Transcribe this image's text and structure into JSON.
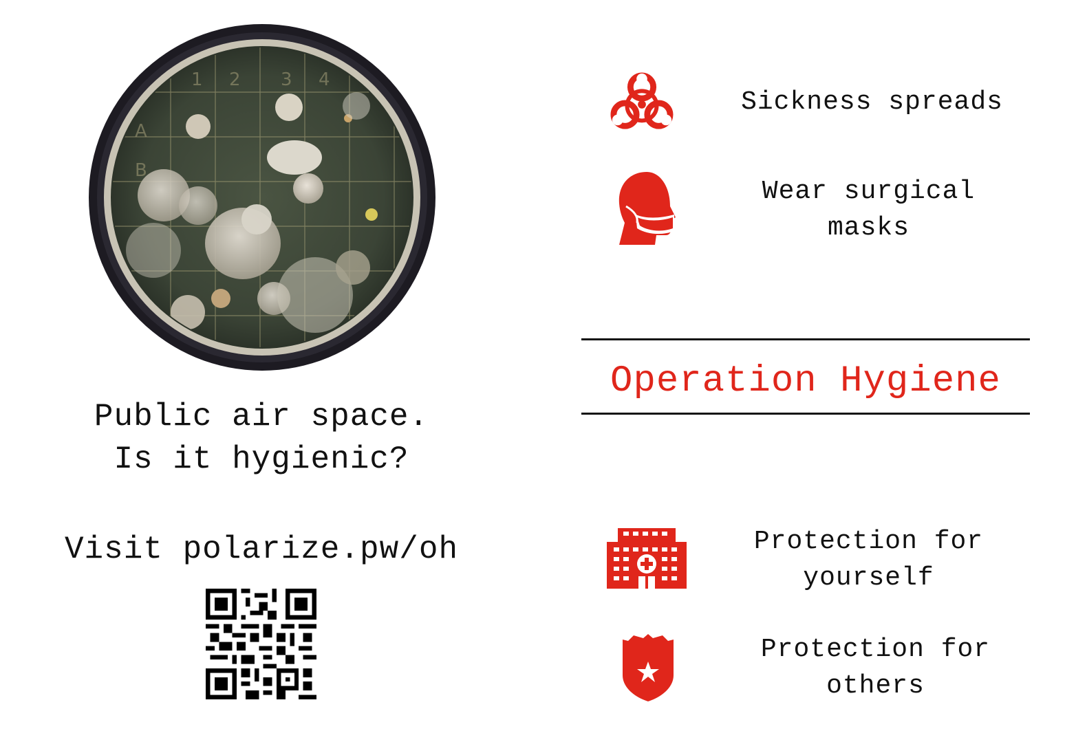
{
  "colors": {
    "accent": "#e0261b",
    "text": "#111111",
    "background": "#ffffff"
  },
  "left": {
    "image": "petri-dish-photo",
    "tagline_line1": "Public air space.",
    "tagline_line2": "Is it hygienic?",
    "visit_text": "Visit polarize.pw/oh",
    "qr": "qr-code"
  },
  "headline": "Operation Hygiene",
  "features_top": [
    {
      "icon": "biohazard-icon",
      "line1": "Sickness spreads",
      "line2": ""
    },
    {
      "icon": "surgical-mask-icon",
      "line1": "Wear surgical",
      "line2": "masks"
    }
  ],
  "features_bottom": [
    {
      "icon": "hospital-icon",
      "line1": "Protection for",
      "line2": "yourself"
    },
    {
      "icon": "police-badge-icon",
      "line1": "Protection for",
      "line2": "others"
    }
  ]
}
